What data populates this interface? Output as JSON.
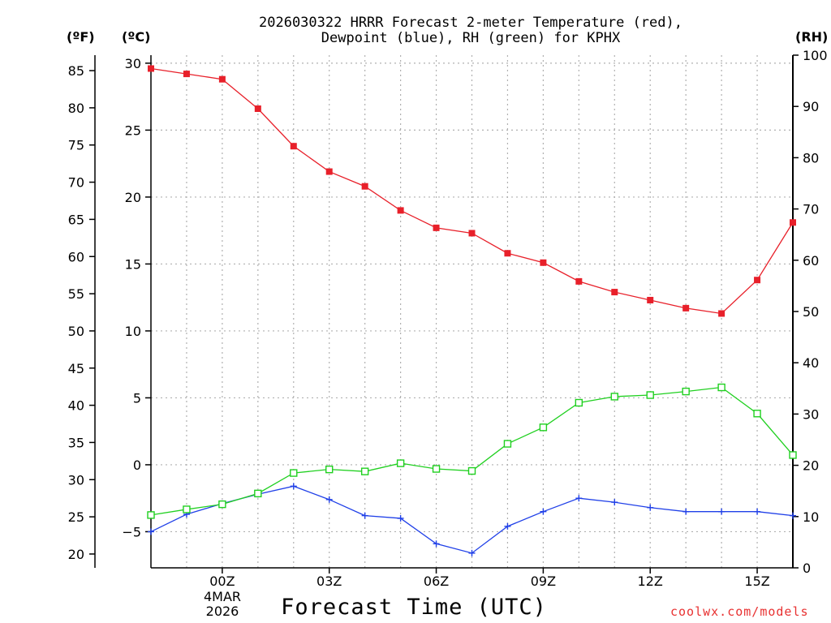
{
  "title_line1": "2026030322 HRRR Forecast 2-meter Temperature (red),",
  "title_line2": "Dewpoint (blue), RH (green) for KPHX",
  "unit_f": "(ºF)",
  "unit_c": "(ºC)",
  "unit_rh": "(RH)",
  "xaxis_title": "Forecast Time (UTC)",
  "credit": "coolwx.com/models",
  "date_day": "4MAR",
  "date_year": "2026",
  "colors": {
    "temp": "#e8202a",
    "dewpoint": "#2040e8",
    "rh": "#20d020",
    "grid": "#b0b0b0"
  },
  "chart_data": {
    "type": "line",
    "title": "2026030322 HRRR Forecast 2-meter Temperature (red), Dewpoint (blue), RH (green) for KPHX",
    "xlabel": "Forecast Time (UTC)",
    "x_hours": [
      -2,
      -1,
      0,
      1,
      2,
      3,
      4,
      5,
      6,
      7,
      8,
      9,
      10,
      11,
      12,
      13,
      14,
      15,
      16
    ],
    "x_ticks": [
      {
        "hour": 0,
        "label": "00Z"
      },
      {
        "hour": 3,
        "label": "03Z"
      },
      {
        "hour": 6,
        "label": "06Z"
      },
      {
        "hour": 9,
        "label": "09Z"
      },
      {
        "hour": 12,
        "label": "12Z"
      },
      {
        "hour": 15,
        "label": "15Z"
      }
    ],
    "xlim": [
      -2,
      16
    ],
    "celsius_axis": {
      "ylim": [
        -7.7,
        30.6
      ],
      "ticks": [
        30,
        25,
        20,
        15,
        10,
        5,
        0,
        -5
      ]
    },
    "fahrenheit_axis": {
      "ticks": [
        85,
        80,
        75,
        70,
        65,
        60,
        55,
        50,
        45,
        40,
        35,
        30,
        25,
        20
      ]
    },
    "rh_axis": {
      "ylim": [
        0,
        100
      ],
      "ticks": [
        100,
        90,
        80,
        70,
        60,
        50,
        40,
        30,
        20,
        10,
        0
      ]
    },
    "series": [
      {
        "name": "Temperature (°C)",
        "color": "red",
        "axis": "celsius",
        "values": [
          29.6,
          29.2,
          28.8,
          26.6,
          23.8,
          21.9,
          20.8,
          19.0,
          17.7,
          17.3,
          15.8,
          15.1,
          13.7,
          12.9,
          12.3,
          11.7,
          11.3,
          13.8,
          18.1
        ]
      },
      {
        "name": "Dewpoint (°C)",
        "color": "blue",
        "axis": "celsius",
        "values": [
          -5.0,
          -3.7,
          -2.9,
          -2.2,
          -1.6,
          -2.6,
          -3.8,
          -4.0,
          -5.9,
          -6.6,
          -4.6,
          -3.5,
          -2.5,
          -2.8,
          -3.2,
          -3.5,
          -3.5,
          -3.5,
          -3.8
        ]
      },
      {
        "name": "RH (%)",
        "color": "green",
        "axis": "rh",
        "values": [
          10.3,
          11.4,
          12.4,
          14.5,
          18.5,
          19.2,
          18.8,
          20.4,
          19.3,
          18.9,
          24.2,
          27.4,
          32.2,
          33.4,
          33.7,
          34.4,
          35.2,
          30.1,
          22.0
        ]
      }
    ]
  }
}
